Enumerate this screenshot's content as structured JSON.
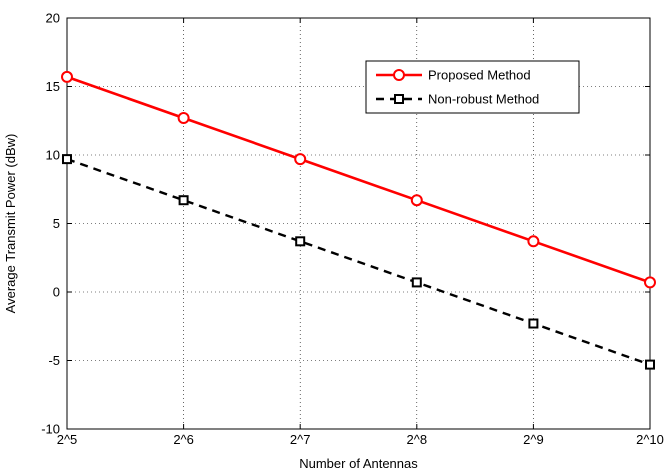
{
  "chart_data": {
    "type": "line",
    "title": "",
    "xlabel": "Number of Antennas",
    "ylabel": "Average Transmit Power (dBw)",
    "x": [
      5,
      6,
      7,
      8,
      9,
      10
    ],
    "x_tick_labels": [
      "2^5",
      "2^6",
      "2^7",
      "2^8",
      "2^9",
      "2^10"
    ],
    "y_ticks": [
      -10,
      -5,
      0,
      5,
      10,
      15,
      20
    ],
    "xlim": [
      5,
      10
    ],
    "ylim": [
      -10,
      20
    ],
    "grid": true,
    "legend_position": "top-right",
    "series": [
      {
        "name": "Proposed Method",
        "values": [
          15.7,
          12.7,
          9.7,
          6.7,
          3.7,
          0.7
        ],
        "color": "#ff0000",
        "line_style": "solid",
        "marker": "circle"
      },
      {
        "name": "Non-robust Method",
        "values": [
          9.7,
          6.7,
          3.7,
          0.7,
          -2.3,
          -5.3
        ],
        "color": "#000000",
        "line_style": "dashed",
        "marker": "square"
      }
    ]
  }
}
